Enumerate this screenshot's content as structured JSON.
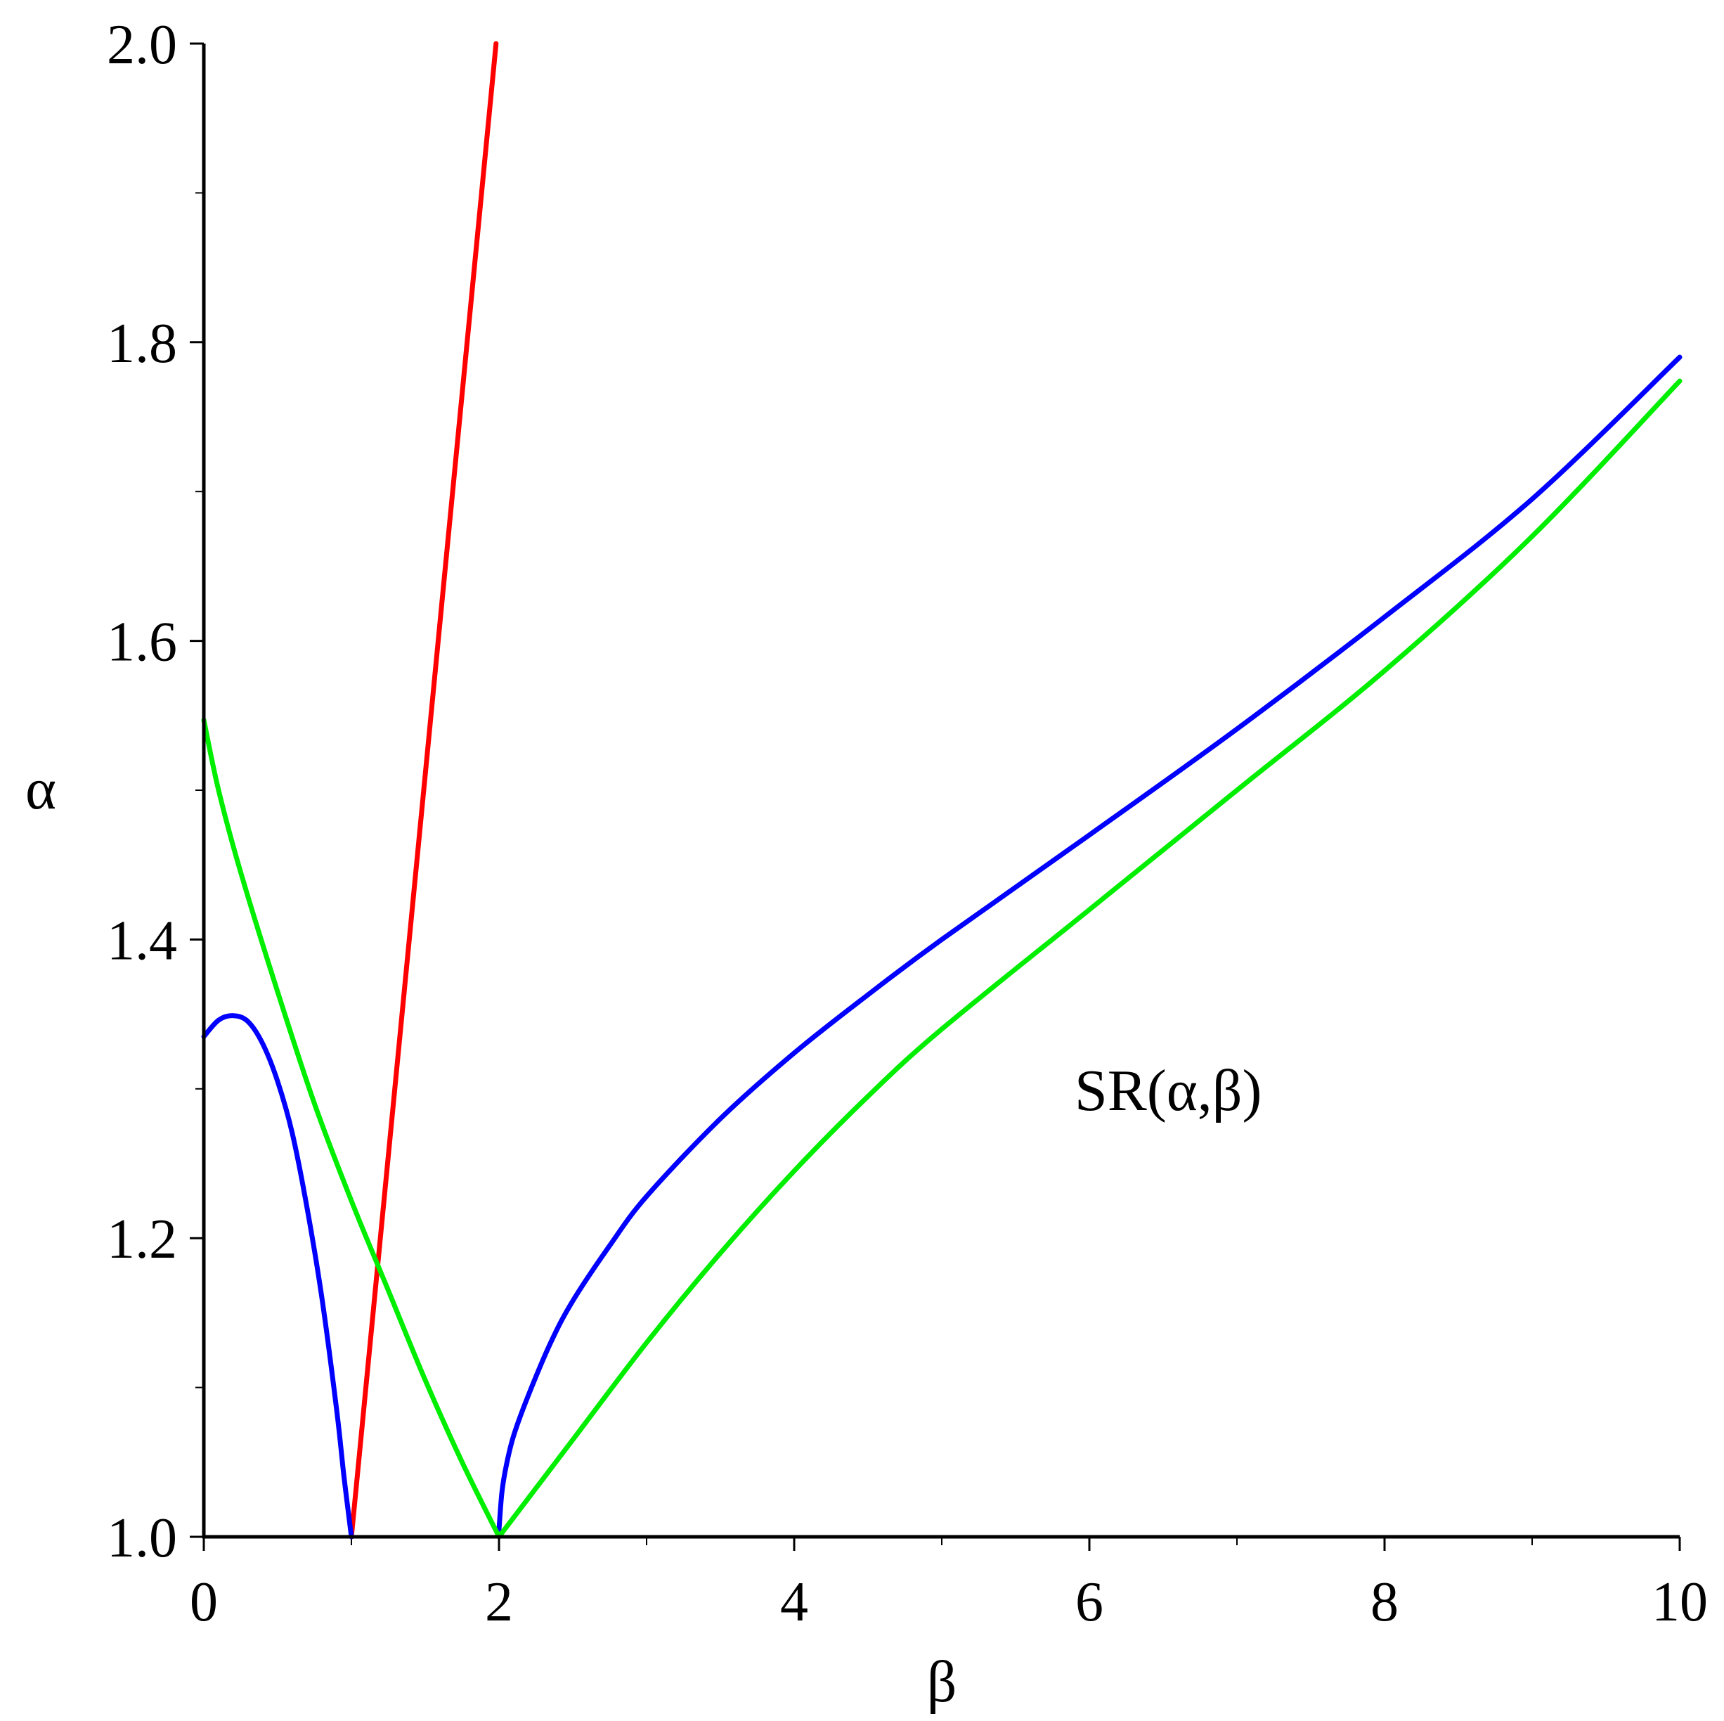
{
  "chart_data": {
    "type": "line",
    "title": "",
    "xlabel": "β",
    "ylabel": "α",
    "xlim": [
      0,
      10
    ],
    "ylim": [
      1.0,
      2.0
    ],
    "xticks": [
      0,
      2,
      4,
      6,
      8,
      10
    ],
    "xtick_labels": [
      "0",
      "2",
      "4",
      "6",
      "8",
      "10"
    ],
    "yticks": [
      1.0,
      1.2,
      1.4,
      1.6,
      1.8,
      2.0
    ],
    "ytick_labels": [
      "1.0",
      "1.2",
      "1.4",
      "1.6",
      "1.8",
      "2.0"
    ],
    "grid": false,
    "annotations": [
      {
        "text": "SR(α,β)",
        "x": 5.9,
        "y": 1.3
      }
    ],
    "series": [
      {
        "color": "#ff0000",
        "x": [
          1.0,
          1.98
        ],
        "y": [
          1.0,
          2.0
        ]
      },
      {
        "color": "#0000ff",
        "x": [
          0.0,
          0.1,
          0.2,
          0.3,
          0.4,
          0.5,
          0.6,
          0.7,
          0.8,
          0.9,
          0.95,
          1.0
        ],
        "y": [
          1.335,
          1.346,
          1.349,
          1.345,
          1.33,
          1.305,
          1.27,
          1.22,
          1.16,
          1.085,
          1.04,
          1.0
        ]
      },
      {
        "color": "#0000ff",
        "x": [
          2.0,
          2.02,
          2.05,
          2.1,
          2.2,
          2.35,
          2.5,
          2.75,
          3.0,
          3.5,
          4.0,
          4.5,
          5.0,
          6.0,
          7.0,
          8.0,
          9.0,
          10.0
        ],
        "y": [
          1.005,
          1.03,
          1.048,
          1.068,
          1.095,
          1.13,
          1.158,
          1.195,
          1.228,
          1.28,
          1.324,
          1.363,
          1.4,
          1.47,
          1.541,
          1.616,
          1.695,
          1.79
        ]
      },
      {
        "color": "#00ee00",
        "x": [
          0.0,
          0.1,
          0.25,
          0.5,
          0.75,
          1.0,
          1.25,
          1.5,
          1.75,
          2.0
        ],
        "y": [
          1.547,
          1.5,
          1.445,
          1.365,
          1.29,
          1.225,
          1.165,
          1.105,
          1.05,
          1.0
        ]
      },
      {
        "color": "#00ee00",
        "x": [
          2.0,
          2.5,
          3.0,
          3.5,
          4.0,
          4.5,
          5.0,
          6.0,
          7.0,
          8.0,
          9.0,
          10.0
        ],
        "y": [
          1.0,
          1.065,
          1.13,
          1.19,
          1.245,
          1.295,
          1.34,
          1.42,
          1.5,
          1.58,
          1.67,
          1.774
        ]
      }
    ]
  }
}
